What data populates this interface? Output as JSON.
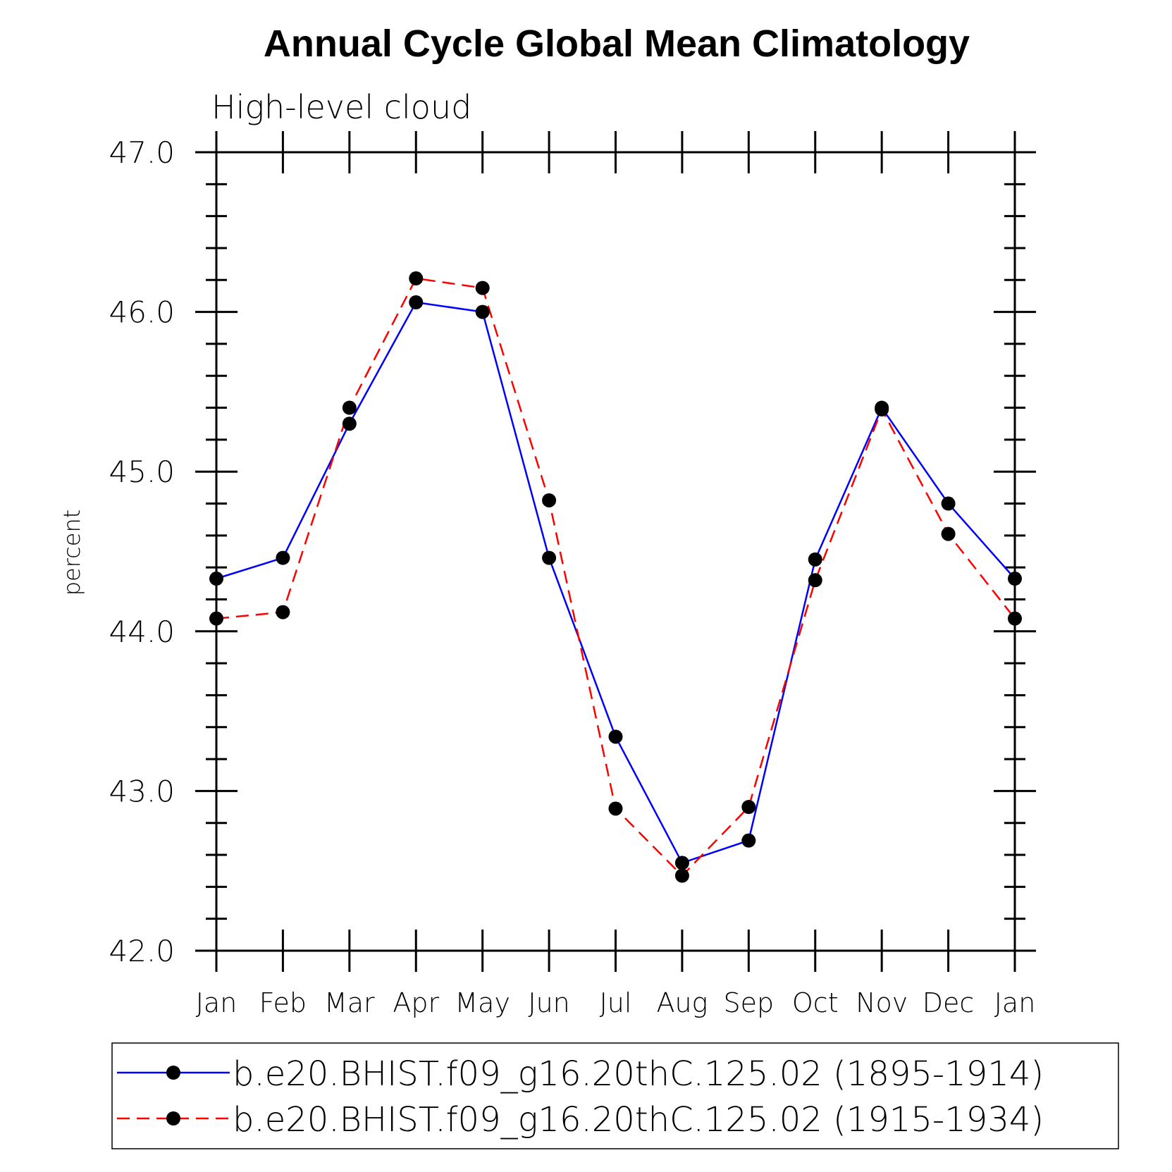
{
  "chart_data": {
    "type": "line",
    "title": "Annual Cycle Global Mean Climatology",
    "subtitle": "High-level cloud",
    "ylabel": "percent",
    "xlabel": "",
    "categories": [
      "Jan",
      "Feb",
      "Mar",
      "Apr",
      "May",
      "Jun",
      "Jul",
      "Aug",
      "Sep",
      "Oct",
      "Nov",
      "Dec",
      "Jan"
    ],
    "ylim": [
      42.0,
      47.0
    ],
    "yticks": [
      "42.0",
      "43.0",
      "44.0",
      "45.0",
      "46.0",
      "47.0"
    ],
    "series": [
      {
        "name": "b.e20.BHIST.f09_g16.20thC.125.02 (1895-1914)",
        "color": "#0000ff",
        "dash": "solid",
        "values": [
          44.33,
          44.46,
          45.3,
          46.06,
          46.0,
          44.46,
          43.34,
          42.55,
          42.69,
          44.45,
          45.4,
          44.8,
          44.33
        ]
      },
      {
        "name": "b.e20.BHIST.f09_g16.20thC.125.02 (1915-1934)",
        "color": "#ff0000",
        "dash": "dashed",
        "values": [
          44.08,
          44.12,
          45.4,
          46.21,
          46.15,
          44.82,
          42.89,
          42.47,
          42.9,
          44.32,
          45.39,
          44.61,
          44.08
        ]
      }
    ],
    "legend_position": "bottom"
  }
}
